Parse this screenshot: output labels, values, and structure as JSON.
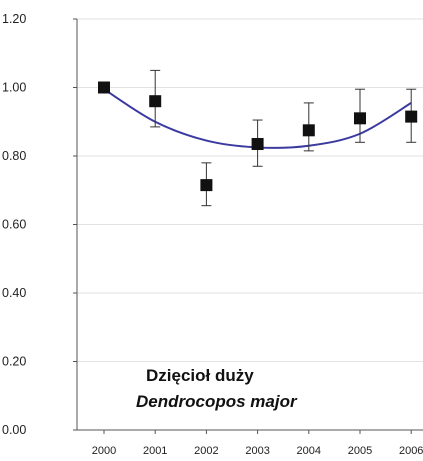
{
  "chart_data": {
    "type": "scatter",
    "title": "",
    "xlabel": "",
    "ylabel": "",
    "categories": [
      "2000",
      "2001",
      "2002",
      "2003",
      "2004",
      "2005",
      "2006"
    ],
    "ylim": [
      0,
      1.2
    ],
    "y_ticks": [
      "0.00",
      "0.20",
      "0.40",
      "0.60",
      "0.80",
      "1.00",
      "1.20"
    ],
    "grid": "horizontal",
    "series": [
      {
        "values": [
          1.0,
          0.96,
          0.715,
          0.835,
          0.875,
          0.91,
          0.915
        ],
        "error_low": [
          1.0,
          0.885,
          0.655,
          0.77,
          0.815,
          0.84,
          0.84
        ],
        "error_high": [
          1.0,
          1.05,
          0.78,
          0.905,
          0.955,
          0.995,
          0.995
        ]
      }
    ],
    "trend_line": {
      "type": "polynomial",
      "values": [
        0.995,
        0.9,
        0.845,
        0.825,
        0.83,
        0.865,
        0.955
      ]
    },
    "colors": {
      "marker": "#111111",
      "trend": "#3a3aa0",
      "grid": "#e2e2e2",
      "axis": "#555555"
    }
  },
  "annotation": {
    "common_name": "Dzięcioł duży",
    "latin_name": "Dendrocopos major"
  }
}
